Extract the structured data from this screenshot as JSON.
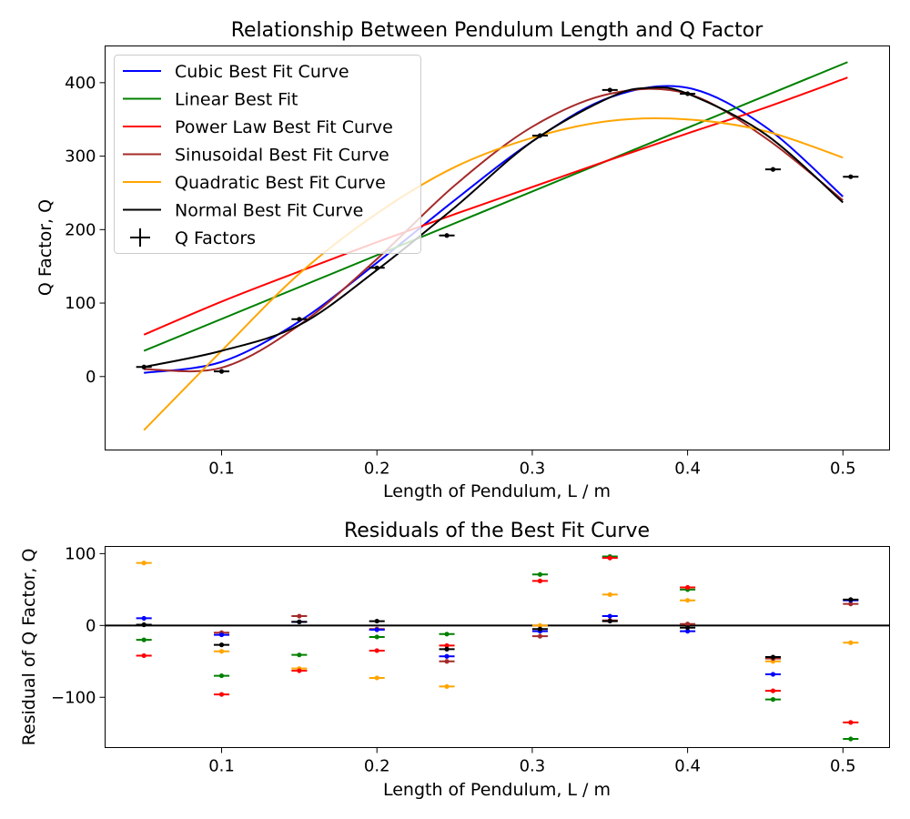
{
  "chart_data": [
    {
      "type": "line",
      "title": "Relationship Between Pendulum Length and Q Factor",
      "xlabel": "Length of Pendulum, L / m",
      "ylabel": "Q Factor, Q",
      "xlim": [
        0.025,
        0.53
      ],
      "ylim": [
        -100,
        450
      ],
      "xticks": [
        0.1,
        0.2,
        0.3,
        0.4,
        0.5
      ],
      "xtick_labels": [
        "0.1",
        "0.2",
        "0.3",
        "0.4",
        "0.5"
      ],
      "yticks": [
        0,
        100,
        200,
        300,
        400
      ],
      "ytick_labels": [
        "0",
        "100",
        "200",
        "300",
        "400"
      ],
      "grid": false,
      "legend_position": "top-left",
      "series": [
        {
          "name": "Cubic Best Fit Curve",
          "color": "#0000ff",
          "kind": "curve",
          "x": [
            0.05,
            0.1,
            0.15,
            0.2,
            0.25,
            0.3,
            0.35,
            0.4,
            0.45,
            0.5
          ],
          "y": [
            5,
            20,
            75,
            155,
            240,
            320,
            380,
            393,
            340,
            245
          ]
        },
        {
          "name": "Linear Best Fit",
          "color": "#008000",
          "kind": "curve",
          "x": [
            0.05,
            0.503
          ],
          "y": [
            35,
            428
          ]
        },
        {
          "name": "Power Law Best Fit Curve",
          "color": "#ff0000",
          "kind": "curve",
          "x": [
            0.05,
            0.1,
            0.15,
            0.2,
            0.25,
            0.3,
            0.35,
            0.4,
            0.45,
            0.503
          ],
          "y": [
            57,
            102,
            143,
            183,
            221,
            258,
            295,
            331,
            366,
            407
          ]
        },
        {
          "name": "Sinusoidal Best Fit Curve",
          "color": "#a52a2a",
          "kind": "curve",
          "x": [
            0.05,
            0.1,
            0.15,
            0.2,
            0.25,
            0.3,
            0.35,
            0.4,
            0.45,
            0.5
          ],
          "y": [
            10,
            12,
            70,
            160,
            260,
            340,
            385,
            385,
            325,
            240
          ]
        },
        {
          "name": "Quadratic Best Fit Curve",
          "color": "#ffa500",
          "kind": "curve",
          "x": [
            0.05,
            0.1,
            0.15,
            0.2,
            0.25,
            0.3,
            0.35,
            0.4,
            0.45,
            0.5
          ],
          "y": [
            -73,
            35,
            140,
            222,
            285,
            325,
            348,
            350,
            334,
            298
          ]
        },
        {
          "name": "Normal Best Fit Curve",
          "color": "#000000",
          "kind": "curve",
          "x": [
            0.05,
            0.1,
            0.15,
            0.2,
            0.25,
            0.3,
            0.35,
            0.375,
            0.4,
            0.45,
            0.5
          ],
          "y": [
            13,
            35,
            70,
            145,
            230,
            320,
            380,
            393,
            385,
            330,
            237
          ]
        },
        {
          "name": "Q Factors",
          "color": "#000000",
          "kind": "errorbar",
          "x": [
            0.05,
            0.1,
            0.15,
            0.2,
            0.245,
            0.305,
            0.35,
            0.4,
            0.455,
            0.505
          ],
          "y": [
            13,
            7,
            78,
            148,
            192,
            328,
            390,
            385,
            282,
            272
          ],
          "xerr": 0.005
        }
      ]
    },
    {
      "type": "scatter",
      "title": "Residuals of the Best Fit Curve",
      "xlabel": "Length of Pendulum, L / m",
      "ylabel": "Residual of Q Factor, Q",
      "xlim": [
        0.025,
        0.53
      ],
      "ylim": [
        -170,
        110
      ],
      "xticks": [
        0.1,
        0.2,
        0.3,
        0.4,
        0.5
      ],
      "xtick_labels": [
        "0.1",
        "0.2",
        "0.3",
        "0.4",
        "0.5"
      ],
      "yticks": [
        -100,
        0,
        100
      ],
      "ytick_labels": [
        "−100",
        "0",
        "100"
      ],
      "zero_line": true,
      "grid": false,
      "xerr": 0.005,
      "x": [
        0.05,
        0.1,
        0.15,
        0.2,
        0.245,
        0.305,
        0.35,
        0.4,
        0.455,
        0.505
      ],
      "series": [
        {
          "color": "#ffa500",
          "y": [
            87,
            -36,
            -60,
            -73,
            -85,
            0,
            43,
            35,
            -50,
            -24
          ]
        },
        {
          "color": "#008000",
          "y": [
            -20,
            -70,
            -41,
            -16,
            -12,
            71,
            96,
            50,
            -103,
            -158
          ]
        },
        {
          "color": "#ff0000",
          "y": [
            -42,
            -96,
            -63,
            -35,
            -28,
            62,
            94,
            53,
            -91,
            -135
          ]
        },
        {
          "color": "#a52a2a",
          "y": [
            1,
            -10,
            13,
            -5,
            -50,
            -15,
            7,
            2,
            -46,
            30
          ]
        },
        {
          "color": "#0000ff",
          "y": [
            10,
            -13,
            5,
            -6,
            -43,
            -8,
            13,
            -8,
            -68,
            35
          ]
        },
        {
          "color": "#000000",
          "y": [
            1,
            -27,
            5,
            6,
            -33,
            -5,
            6,
            -3,
            -44,
            36
          ]
        }
      ]
    }
  ]
}
